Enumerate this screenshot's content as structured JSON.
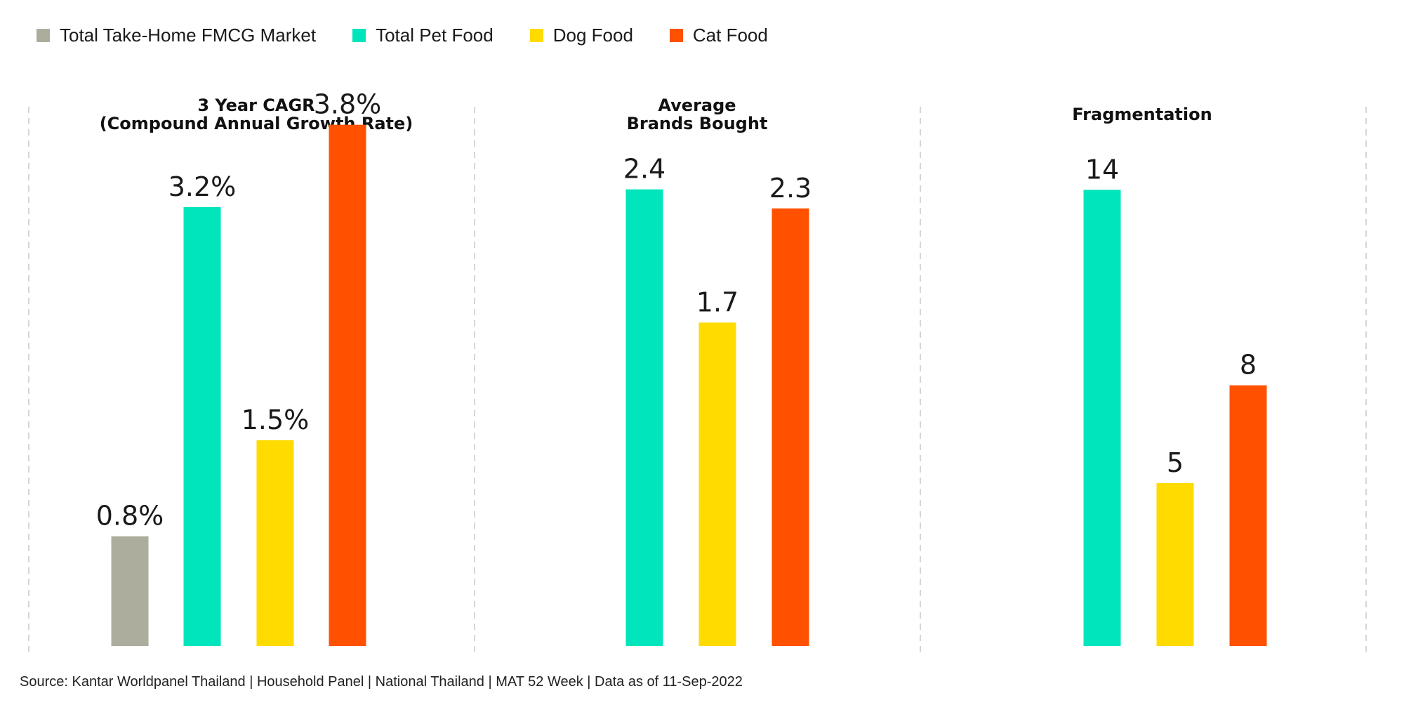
{
  "legend": [
    {
      "label": "Total Take-Home FMCG Market",
      "color": "#ADAD9E"
    },
    {
      "label": "Total Pet Food",
      "color": "#00E5BC"
    },
    {
      "label": "Dog Food",
      "color": "#FFDB00"
    },
    {
      "label": "Cat Food",
      "color": "#FF5100"
    }
  ],
  "chart_data": [
    {
      "type": "bar",
      "title": "3 Year CAGR\n(Compound Annual Growth Rate)",
      "categories": [
        "Total Take-Home FMCG Market",
        "Total Pet Food",
        "Dog Food",
        "Cat Food"
      ],
      "values": [
        0.8,
        3.2,
        1.5,
        3.8
      ],
      "data_labels": [
        "0.8%",
        "3.2%",
        "1.5%",
        "3.8%"
      ],
      "ylim": [
        0,
        4.3
      ]
    },
    {
      "type": "bar",
      "title": "Average\nBrands Bought",
      "categories": [
        "Total Pet Food",
        "Dog Food",
        "Cat Food"
      ],
      "values": [
        2.4,
        1.7,
        2.3
      ],
      "data_labels": [
        "2.4",
        "1.7",
        "2.3"
      ],
      "ylim": [
        0,
        3.1
      ]
    },
    {
      "type": "bar",
      "title": "Fragmentation",
      "categories": [
        "Total Pet Food",
        "Dog Food",
        "Cat Food"
      ],
      "values": [
        14,
        5,
        8
      ],
      "data_labels": [
        "14",
        "5",
        "8"
      ],
      "ylim": [
        0,
        18.1
      ]
    }
  ],
  "source": "Source: Kantar Worldpanel Thailand | Household Panel | National Thailand | MAT 52 Week | Data as of 11-Sep-2022"
}
